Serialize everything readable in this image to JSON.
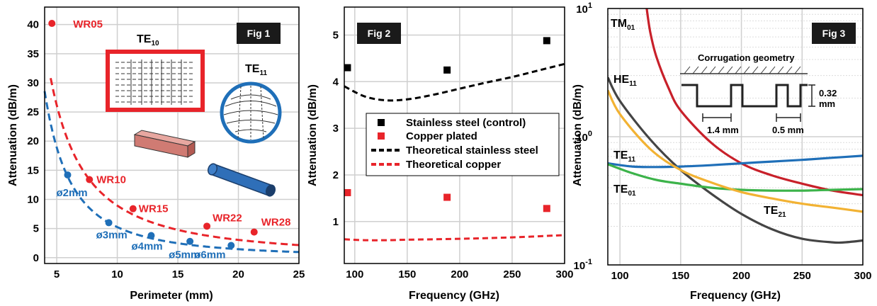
{
  "colors": {
    "red": "#e8242a",
    "blue": "#1f6fb8",
    "black": "#000000",
    "green": "#3cb34a",
    "yellow": "#f2b233",
    "darkgrey": "#444444",
    "darkred": "#c8202a"
  },
  "chart_data": [
    {
      "type": "line",
      "badge": "Fig 1",
      "xlabel": "Perimeter (mm)",
      "ylabel": "Attenuation (dB/m)",
      "xlim": [
        4,
        25
      ],
      "ylim": [
        -1,
        43
      ],
      "xticks": [
        5,
        10,
        15,
        20,
        25
      ],
      "yticks": [
        0,
        5,
        10,
        15,
        20,
        25,
        30,
        35,
        40
      ],
      "grid": true,
      "series": [
        {
          "color": "red",
          "style": "dashed",
          "points": [
            {
              "x": 4.6,
              "y": 40.2,
              "label": "WR05"
            },
            {
              "x": 7.7,
              "y": 13.4,
              "label": "WR10"
            },
            {
              "x": 11.3,
              "y": 8.4,
              "label": "WR15"
            },
            {
              "x": 17.4,
              "y": 5.4,
              "label": "WR22"
            },
            {
              "x": 21.3,
              "y": 4.4,
              "label": "WR28"
            }
          ]
        },
        {
          "color": "blue",
          "style": "dashed",
          "points": [
            {
              "x": 5.9,
              "y": 14.2,
              "label": "ø2mm"
            },
            {
              "x": 9.3,
              "y": 6.0,
              "label": "ø3mm"
            },
            {
              "x": 12.8,
              "y": 3.8,
              "label": "ø4mm"
            },
            {
              "x": 16.0,
              "y": 2.8,
              "label": "ø5mm"
            },
            {
              "x": 19.4,
              "y": 2.1,
              "label": "ø6mm"
            }
          ]
        }
      ],
      "insets": {
        "te10_main": "TE",
        "te10_sub": "10",
        "te11_main": "TE",
        "te11_sub": "11"
      }
    },
    {
      "type": "scatter",
      "badge": "Fig 2",
      "xlabel": "Frequency (GHz)",
      "ylabel": "Attenuation (dB/m)",
      "xlim": [
        90,
        300
      ],
      "ylim": [
        0.1,
        5.6
      ],
      "xticks": [
        100,
        150,
        200,
        250,
        300
      ],
      "yticks": [
        1,
        2,
        3,
        4,
        5
      ],
      "grid": true,
      "legend": [
        "Stainless steel (control)",
        "Copper plated",
        "Theoretical stainless steel",
        "Theoretical copper"
      ],
      "series": [
        {
          "name": "Stainless steel (control)",
          "color": "black",
          "marker": "square",
          "x": [
            93,
            188,
            283
          ],
          "y": [
            4.3,
            4.25,
            4.88
          ]
        },
        {
          "name": "Copper plated",
          "color": "red",
          "marker": "square",
          "x": [
            93,
            188,
            283
          ],
          "y": [
            1.62,
            1.52,
            1.28
          ]
        },
        {
          "name": "Theoretical stainless steel",
          "color": "black",
          "style": "dashed",
          "x": [
            90,
            110,
            130,
            150,
            175,
            200,
            225,
            250,
            275,
            300
          ],
          "y": [
            3.9,
            3.68,
            3.6,
            3.62,
            3.72,
            3.85,
            3.98,
            4.1,
            4.24,
            4.38
          ]
        },
        {
          "name": "Theoretical copper",
          "color": "red",
          "style": "dashed",
          "x": [
            90,
            110,
            130,
            150,
            200,
            250,
            300
          ],
          "y": [
            0.62,
            0.6,
            0.6,
            0.61,
            0.63,
            0.66,
            0.71
          ]
        }
      ]
    },
    {
      "type": "line",
      "badge": "Fig 3",
      "xlabel": "Frequency (GHz)",
      "ylabel": "Attenuation (dB/m)",
      "xlim": [
        90,
        300
      ],
      "ylog": true,
      "ylim": [
        0.1,
        10
      ],
      "xticks": [
        100,
        150,
        200,
        250,
        300
      ],
      "yticks": [
        {
          "base": "10",
          "exp": "-1"
        },
        {
          "base": "10",
          "exp": "0"
        },
        {
          "base": "10",
          "exp": "1"
        }
      ],
      "grid": true,
      "inset_title": "Corrugation geometry",
      "inset_dims": {
        "height_1": "0.32",
        "height_2": "mm",
        "pitch": "1.4 mm",
        "gap": "0.5 mm"
      },
      "series": [
        {
          "main": "TM",
          "sub": "01",
          "color": "darkred",
          "x": [
            122,
            125,
            130,
            140,
            150,
            175,
            200,
            225,
            250,
            275,
            300
          ],
          "y": [
            10,
            6.5,
            4.2,
            2.4,
            1.6,
            0.9,
            0.62,
            0.5,
            0.43,
            0.38,
            0.35
          ]
        },
        {
          "main": "HE",
          "sub": "11",
          "color": "darkgrey",
          "x": [
            90,
            100,
            125,
            150,
            175,
            200,
            225,
            250,
            275,
            285,
            300
          ],
          "y": [
            2.9,
            1.9,
            0.95,
            0.55,
            0.36,
            0.25,
            0.19,
            0.16,
            0.15,
            0.15,
            0.155
          ]
        },
        {
          "main": "TE",
          "sub": "11",
          "color": "blue",
          "x": [
            90,
            110,
            130,
            150,
            175,
            200,
            225,
            250,
            275,
            300
          ],
          "y": [
            0.62,
            0.585,
            0.58,
            0.585,
            0.6,
            0.62,
            0.64,
            0.66,
            0.685,
            0.71
          ]
        },
        {
          "main": "TE",
          "sub": "01",
          "color": "green",
          "x": [
            90,
            110,
            130,
            150,
            175,
            200,
            225,
            250,
            275,
            300
          ],
          "y": [
            0.61,
            0.52,
            0.46,
            0.43,
            0.4,
            0.385,
            0.38,
            0.38,
            0.385,
            0.39
          ]
        },
        {
          "main": "TE",
          "sub": "21",
          "color": "yellow",
          "x": [
            90,
            100,
            125,
            150,
            175,
            200,
            225,
            250,
            275,
            300
          ],
          "y": [
            2.3,
            1.5,
            0.8,
            0.55,
            0.44,
            0.37,
            0.33,
            0.3,
            0.28,
            0.26
          ]
        }
      ]
    }
  ]
}
